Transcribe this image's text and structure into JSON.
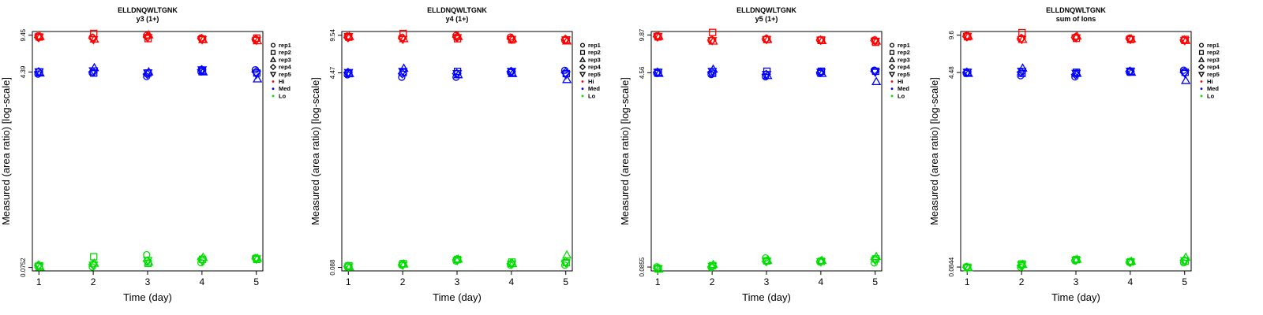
{
  "figure": {
    "xlabel": "Time (day)",
    "ylabel": "Measured (area ratio) [log-scale]"
  },
  "chart_data": [
    {
      "type": "scatter",
      "title": "ELLDNQWLTGNK",
      "subtitle": "y3 (1+)",
      "x": [
        1,
        2,
        3,
        4,
        5
      ],
      "yscale": "log",
      "yticks": [
        "0.0752",
        "4.39",
        "9.45"
      ],
      "ytick_values": [
        0.0752,
        4.39,
        9.45
      ],
      "ylim": [
        0.07,
        10.2
      ],
      "series": [
        {
          "group": "Hi",
          "rep": "rep1",
          "values": [
            9.3,
            9.0,
            9.4,
            8.9,
            8.6
          ]
        },
        {
          "group": "Hi",
          "rep": "rep2",
          "values": [
            9.1,
            9.8,
            8.8,
            8.7,
            8.9
          ]
        },
        {
          "group": "Hi",
          "rep": "rep3",
          "values": [
            9.2,
            8.7,
            9.5,
            8.6,
            8.4
          ]
        },
        {
          "group": "Hi",
          "rep": "rep4",
          "values": [
            9.0,
            8.9,
            9.1,
            8.8,
            8.7
          ]
        },
        {
          "group": "Hi",
          "rep": "rep5",
          "values": [
            9.1,
            8.6,
            9.0,
            8.6,
            8.5
          ]
        },
        {
          "group": "Med",
          "rep": "rep1",
          "values": [
            4.2,
            4.3,
            4.0,
            4.4,
            4.6
          ]
        },
        {
          "group": "Med",
          "rep": "rep2",
          "values": [
            4.4,
            4.3,
            4.3,
            4.5,
            4.3
          ]
        },
        {
          "group": "Med",
          "rep": "rep3",
          "values": [
            4.3,
            4.8,
            4.4,
            4.4,
            3.8
          ]
        },
        {
          "group": "Med",
          "rep": "rep4",
          "values": [
            4.4,
            4.4,
            4.2,
            4.6,
            4.4
          ]
        },
        {
          "group": "Med",
          "rep": "rep5",
          "values": [
            4.4,
            4.5,
            4.3,
            4.6,
            4.2
          ]
        },
        {
          "group": "Lo",
          "rep": "rep1",
          "values": [
            0.077,
            0.076,
            0.098,
            0.083,
            0.092
          ]
        },
        {
          "group": "Lo",
          "rep": "rep2",
          "values": [
            0.078,
            0.094,
            0.082,
            0.089,
            0.089
          ]
        },
        {
          "group": "Lo",
          "rep": "rep3",
          "values": [
            0.076,
            0.082,
            0.084,
            0.093,
            0.091
          ]
        },
        {
          "group": "Lo",
          "rep": "rep4",
          "values": [
            0.079,
            0.08,
            0.086,
            0.089,
            0.09
          ]
        },
        {
          "group": "Lo",
          "rep": "rep5",
          "values": [
            0.077,
            0.079,
            0.087,
            0.086,
            0.09
          ]
        }
      ]
    },
    {
      "type": "scatter",
      "title": "ELLDNQWLTGNK",
      "subtitle": "y4 (1+)",
      "x": [
        1,
        2,
        3,
        4,
        5
      ],
      "yscale": "log",
      "yticks": [
        "0.088",
        "4.47",
        "9.54"
      ],
      "ytick_values": [
        0.088,
        4.47,
        9.54
      ],
      "ylim": [
        0.082,
        10.3
      ],
      "series": [
        {
          "group": "Hi",
          "rep": "rep1",
          "values": [
            9.4,
            9.1,
            9.5,
            9.2,
            8.6
          ]
        },
        {
          "group": "Hi",
          "rep": "rep2",
          "values": [
            9.2,
            9.9,
            8.9,
            8.7,
            8.7
          ]
        },
        {
          "group": "Hi",
          "rep": "rep3",
          "values": [
            9.3,
            8.9,
            9.3,
            8.9,
            8.5
          ]
        },
        {
          "group": "Hi",
          "rep": "rep4",
          "values": [
            9.1,
            9.0,
            9.2,
            8.9,
            8.8
          ]
        },
        {
          "group": "Hi",
          "rep": "rep5",
          "values": [
            9.3,
            8.8,
            9.1,
            8.8,
            8.7
          ]
        },
        {
          "group": "Med",
          "rep": "rep1",
          "values": [
            4.3,
            4.1,
            4.1,
            4.5,
            4.7
          ]
        },
        {
          "group": "Med",
          "rep": "rep2",
          "values": [
            4.4,
            4.5,
            4.6,
            4.5,
            4.4
          ]
        },
        {
          "group": "Med",
          "rep": "rep3",
          "values": [
            4.4,
            4.9,
            4.3,
            4.4,
            3.9
          ]
        },
        {
          "group": "Med",
          "rep": "rep4",
          "values": [
            4.5,
            4.4,
            4.4,
            4.6,
            4.5
          ]
        },
        {
          "group": "Med",
          "rep": "rep5",
          "values": [
            4.5,
            4.6,
            4.4,
            4.6,
            4.3
          ]
        },
        {
          "group": "Lo",
          "rep": "rep1",
          "values": [
            0.089,
            0.092,
            0.1,
            0.092,
            0.092
          ]
        },
        {
          "group": "Lo",
          "rep": "rep2",
          "values": [
            0.091,
            0.095,
            0.103,
            0.098,
            0.097
          ]
        },
        {
          "group": "Lo",
          "rep": "rep3",
          "values": [
            0.089,
            0.094,
            0.104,
            0.095,
            0.113
          ]
        },
        {
          "group": "Lo",
          "rep": "rep4",
          "values": [
            0.09,
            0.093,
            0.103,
            0.095,
            0.099
          ]
        },
        {
          "group": "Lo",
          "rep": "rep5",
          "values": [
            0.089,
            0.092,
            0.101,
            0.094,
            0.096
          ]
        }
      ]
    },
    {
      "type": "scatter",
      "title": "ELLDNQWLTGNK",
      "subtitle": "y5 (1+)",
      "x": [
        1,
        2,
        3,
        4,
        5
      ],
      "yscale": "log",
      "yticks": [
        "0.0855",
        "4.56",
        "9.87"
      ],
      "ytick_values": [
        0.0855,
        4.56,
        9.87
      ],
      "ylim": [
        0.079,
        10.6
      ],
      "series": [
        {
          "group": "Hi",
          "rep": "rep1",
          "values": [
            9.7,
            8.8,
            9.1,
            8.9,
            8.9
          ]
        },
        {
          "group": "Hi",
          "rep": "rep2",
          "values": [
            9.5,
            10.4,
            9.0,
            8.9,
            8.5
          ]
        },
        {
          "group": "Hi",
          "rep": "rep3",
          "values": [
            9.6,
            8.7,
            9.0,
            8.8,
            8.7
          ]
        },
        {
          "group": "Hi",
          "rep": "rep4",
          "values": [
            9.5,
            8.9,
            9.1,
            8.9,
            8.8
          ]
        },
        {
          "group": "Hi",
          "rep": "rep5",
          "values": [
            9.6,
            8.8,
            9.0,
            8.9,
            8.7
          ]
        },
        {
          "group": "Med",
          "rep": "rep1",
          "values": [
            4.5,
            4.4,
            4.2,
            4.5,
            4.8
          ]
        },
        {
          "group": "Med",
          "rep": "rep2",
          "values": [
            4.6,
            4.5,
            4.7,
            4.7,
            4.7
          ]
        },
        {
          "group": "Med",
          "rep": "rep3",
          "values": [
            4.5,
            4.9,
            4.3,
            4.5,
            3.8
          ]
        },
        {
          "group": "Med",
          "rep": "rep4",
          "values": [
            4.6,
            4.6,
            4.4,
            4.6,
            4.7
          ]
        },
        {
          "group": "Med",
          "rep": "rep5",
          "values": [
            4.6,
            4.7,
            4.4,
            4.6,
            4.6
          ]
        },
        {
          "group": "Lo",
          "rep": "rep1",
          "values": [
            0.086,
            0.085,
            0.103,
            0.095,
            0.093
          ]
        },
        {
          "group": "Lo",
          "rep": "rep2",
          "values": [
            0.083,
            0.088,
            0.097,
            0.096,
            0.101
          ]
        },
        {
          "group": "Lo",
          "rep": "rep3",
          "values": [
            0.082,
            0.09,
            0.098,
            0.098,
            0.106
          ]
        },
        {
          "group": "Lo",
          "rep": "rep4",
          "values": [
            0.083,
            0.086,
            0.096,
            0.096,
            0.1
          ]
        },
        {
          "group": "Lo",
          "rep": "rep5",
          "values": [
            0.082,
            0.087,
            0.096,
            0.095,
            0.098
          ]
        }
      ]
    },
    {
      "type": "scatter",
      "title": "ELLDNQWLTGNK",
      "subtitle": "sum of Ions",
      "x": [
        1,
        2,
        3,
        4,
        5
      ],
      "yscale": "log",
      "yticks": [
        "0.0844",
        "4.48",
        "9.6"
      ],
      "ytick_values": [
        0.0844,
        4.48,
        9.6
      ],
      "ylim": [
        0.078,
        10.35
      ],
      "series": [
        {
          "group": "Hi",
          "rep": "rep1",
          "values": [
            9.5,
            8.9,
            9.2,
            9.0,
            8.6
          ]
        },
        {
          "group": "Hi",
          "rep": "rep2",
          "values": [
            9.3,
            10.1,
            9.0,
            8.8,
            8.8
          ]
        },
        {
          "group": "Hi",
          "rep": "rep3",
          "values": [
            9.4,
            8.8,
            9.4,
            8.9,
            8.6
          ]
        },
        {
          "group": "Hi",
          "rep": "rep4",
          "values": [
            9.3,
            9.0,
            9.2,
            8.9,
            8.7
          ]
        },
        {
          "group": "Hi",
          "rep": "rep5",
          "values": [
            9.4,
            8.8,
            9.1,
            8.8,
            8.6
          ]
        },
        {
          "group": "Med",
          "rep": "rep1",
          "values": [
            4.4,
            4.2,
            4.1,
            4.5,
            4.7
          ]
        },
        {
          "group": "Med",
          "rep": "rep2",
          "values": [
            4.5,
            4.4,
            4.5,
            4.6,
            4.5
          ]
        },
        {
          "group": "Med",
          "rep": "rep3",
          "values": [
            4.4,
            4.9,
            4.4,
            4.5,
            3.8
          ]
        },
        {
          "group": "Med",
          "rep": "rep4",
          "values": [
            4.5,
            4.5,
            4.3,
            4.6,
            4.5
          ]
        },
        {
          "group": "Med",
          "rep": "rep5",
          "values": [
            4.5,
            4.6,
            4.4,
            4.6,
            4.4
          ]
        },
        {
          "group": "Lo",
          "rep": "rep1",
          "values": [
            0.085,
            0.084,
            0.096,
            0.093,
            0.092
          ]
        },
        {
          "group": "Lo",
          "rep": "rep2",
          "values": [
            0.084,
            0.09,
            0.098,
            0.094,
            0.095
          ]
        },
        {
          "group": "Lo",
          "rep": "rep3",
          "values": [
            0.083,
            0.089,
            0.099,
            0.095,
            0.103
          ]
        },
        {
          "group": "Lo",
          "rep": "rep4",
          "values": [
            0.084,
            0.087,
            0.097,
            0.093,
            0.097
          ]
        },
        {
          "group": "Lo",
          "rep": "rep5",
          "values": [
            0.083,
            0.088,
            0.097,
            0.093,
            0.096
          ]
        }
      ]
    }
  ],
  "legend": {
    "placement": "right",
    "shape_entries": [
      {
        "label": "rep1",
        "shape": "circle"
      },
      {
        "label": "rep2",
        "shape": "square"
      },
      {
        "label": "rep3",
        "shape": "triangle-up"
      },
      {
        "label": "rep4",
        "shape": "diamond"
      },
      {
        "label": "rep5",
        "shape": "triangle-down"
      }
    ],
    "color_entries": [
      {
        "label": "Hi",
        "color": "#ff0000"
      },
      {
        "label": "Med",
        "color": "#0000ff"
      },
      {
        "label": "Lo",
        "color": "#00dd00"
      }
    ]
  },
  "colors": {
    "Hi": "#ff0000",
    "Med": "#0000ff",
    "Lo": "#00dd00"
  }
}
